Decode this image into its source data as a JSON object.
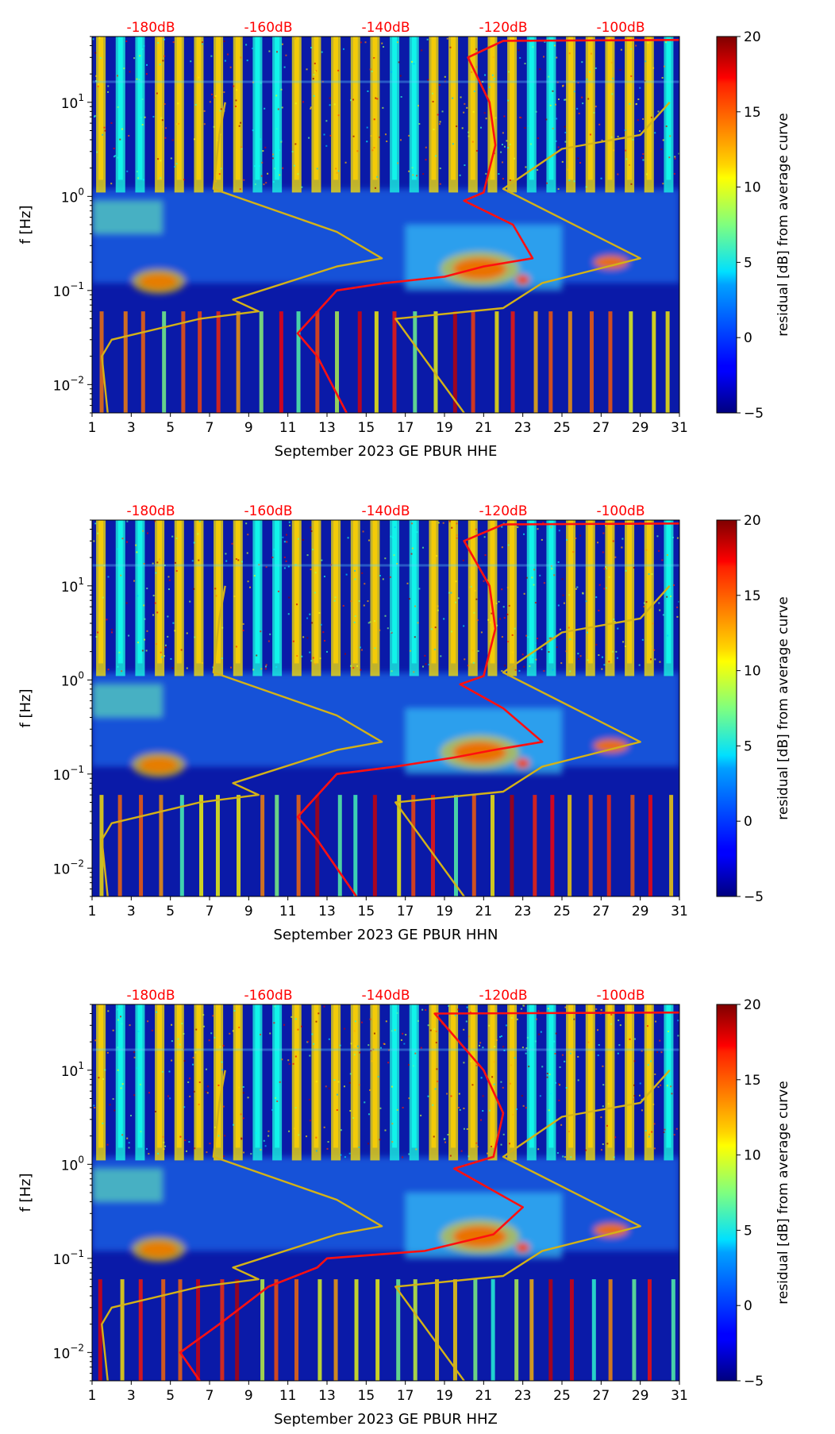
{
  "figure": {
    "background": "#ffffff"
  },
  "colors": {
    "text_red": "#ff0000",
    "nlnm_curve": "#d4b217",
    "median_curve": "#ff1010",
    "axis": "#000000"
  },
  "colorbar": {
    "label": "residual [dB] from average curve",
    "range": [
      -5,
      20
    ],
    "ticks": [
      "20",
      "15",
      "10",
      "5",
      "0",
      "−5"
    ],
    "tick_values": [
      20,
      15,
      10,
      5,
      0,
      -5
    ],
    "colormap": "jet"
  },
  "chart_data": [
    {
      "type": "heatmap",
      "title": "",
      "xlabel": "September 2023 GE PBUR  HHE",
      "ylabel": "f [Hz]",
      "x_ticks": [
        "1",
        "3",
        "5",
        "7",
        "9",
        "11",
        "13",
        "15",
        "17",
        "19",
        "21",
        "23",
        "25",
        "27",
        "29",
        "31"
      ],
      "x_range": [
        1,
        31
      ],
      "y_scale": "log",
      "y_range": [
        0.005,
        50
      ],
      "y_ticks": [
        {
          "value": 10,
          "base": "10",
          "exp": "1"
        },
        {
          "value": 1,
          "base": "10",
          "exp": "0"
        },
        {
          "value": 0.1,
          "base": "10",
          "exp": "−1"
        },
        {
          "value": 0.01,
          "base": "10",
          "exp": "−2"
        }
      ],
      "top_axis": {
        "labels": [
          "-180dB",
          "-160dB",
          "-140dB",
          "-120dB",
          "-100dB"
        ],
        "label_x": [
          4,
          10,
          16,
          22,
          28
        ]
      },
      "lines": [
        {
          "name": "noise-model",
          "points": [
            [
              1.8,
              0.005
            ],
            [
              1.5,
              0.02
            ],
            [
              2.0,
              0.03
            ],
            [
              6.5,
              0.05
            ],
            [
              9.5,
              0.06
            ],
            [
              8.2,
              0.08
            ],
            [
              13.5,
              0.18
            ],
            [
              15.8,
              0.22
            ],
            [
              13.5,
              0.42
            ],
            [
              7.2,
              1.2
            ],
            [
              7.5,
              4.5
            ],
            [
              7.8,
              10
            ],
            [
              20.0,
              0.005
            ],
            [
              16.5,
              0.05
            ],
            [
              22.0,
              0.065
            ],
            [
              24.0,
              0.12
            ],
            [
              29.0,
              0.22
            ],
            [
              22.0,
              1.2
            ],
            [
              25.0,
              3.2
            ],
            [
              29.0,
              4.5
            ],
            [
              30.5,
              10
            ]
          ]
        },
        {
          "name": "median-psd",
          "points": [
            [
              14.0,
              0.005
            ],
            [
              12.5,
              0.02
            ],
            [
              11.5,
              0.035
            ],
            [
              13.5,
              0.1
            ],
            [
              16.0,
              0.12
            ],
            [
              19.0,
              0.14
            ],
            [
              21.0,
              0.18
            ],
            [
              23.5,
              0.22
            ],
            [
              22.5,
              0.5
            ],
            [
              20.0,
              0.9
            ],
            [
              21.0,
              1.1
            ],
            [
              21.6,
              3.5
            ],
            [
              21.3,
              10
            ],
            [
              20.2,
              30
            ],
            [
              22.0,
              45
            ],
            [
              31,
              46
            ]
          ]
        }
      ]
    },
    {
      "type": "heatmap",
      "title": "",
      "xlabel": "September 2023 GE PBUR  HHN",
      "ylabel": "f [Hz]",
      "x_ticks": [
        "1",
        "3",
        "5",
        "7",
        "9",
        "11",
        "13",
        "15",
        "17",
        "19",
        "21",
        "23",
        "25",
        "27",
        "29",
        "31"
      ],
      "x_range": [
        1,
        31
      ],
      "y_scale": "log",
      "y_range": [
        0.005,
        50
      ],
      "y_ticks": [
        {
          "value": 10,
          "base": "10",
          "exp": "1"
        },
        {
          "value": 1,
          "base": "10",
          "exp": "0"
        },
        {
          "value": 0.1,
          "base": "10",
          "exp": "−1"
        },
        {
          "value": 0.01,
          "base": "10",
          "exp": "−2"
        }
      ],
      "top_axis": {
        "labels": [
          "-180dB",
          "-160dB",
          "-140dB",
          "-120dB",
          "-100dB"
        ],
        "label_x": [
          4,
          10,
          16,
          22,
          28
        ]
      },
      "lines": [
        {
          "name": "noise-model",
          "points": [
            [
              1.8,
              0.005
            ],
            [
              1.5,
              0.02
            ],
            [
              2.0,
              0.03
            ],
            [
              6.5,
              0.05
            ],
            [
              9.5,
              0.06
            ],
            [
              8.2,
              0.08
            ],
            [
              13.5,
              0.18
            ],
            [
              15.8,
              0.22
            ],
            [
              13.5,
              0.42
            ],
            [
              7.2,
              1.2
            ],
            [
              7.5,
              4.5
            ],
            [
              7.8,
              10
            ],
            [
              20.0,
              0.005
            ],
            [
              16.5,
              0.05
            ],
            [
              22.0,
              0.065
            ],
            [
              24.0,
              0.12
            ],
            [
              29.0,
              0.22
            ],
            [
              22.0,
              1.2
            ],
            [
              25.0,
              3.2
            ],
            [
              29.0,
              4.5
            ],
            [
              30.5,
              10
            ]
          ]
        },
        {
          "name": "median-psd",
          "points": [
            [
              14.5,
              0.005
            ],
            [
              12.5,
              0.02
            ],
            [
              11.5,
              0.035
            ],
            [
              13.5,
              0.1
            ],
            [
              16.5,
              0.12
            ],
            [
              19.5,
              0.15
            ],
            [
              21.5,
              0.18
            ],
            [
              24.0,
              0.22
            ],
            [
              22.0,
              0.5
            ],
            [
              19.8,
              0.9
            ],
            [
              21.0,
              1.1
            ],
            [
              21.6,
              3.5
            ],
            [
              21.3,
              10
            ],
            [
              20.0,
              30
            ],
            [
              22.0,
              45
            ],
            [
              31,
              46
            ]
          ]
        }
      ]
    },
    {
      "type": "heatmap",
      "title": "",
      "xlabel": "September 2023 GE PBUR  HHZ",
      "ylabel": "f [Hz]",
      "x_ticks": [
        "1",
        "3",
        "5",
        "7",
        "9",
        "11",
        "13",
        "15",
        "17",
        "19",
        "21",
        "23",
        "25",
        "27",
        "29",
        "31"
      ],
      "x_range": [
        1,
        31
      ],
      "y_scale": "log",
      "y_range": [
        0.005,
        50
      ],
      "y_ticks": [
        {
          "value": 10,
          "base": "10",
          "exp": "1"
        },
        {
          "value": 1,
          "base": "10",
          "exp": "0"
        },
        {
          "value": 0.1,
          "base": "10",
          "exp": "−1"
        },
        {
          "value": 0.01,
          "base": "10",
          "exp": "−2"
        }
      ],
      "top_axis": {
        "labels": [
          "-180dB",
          "-160dB",
          "-140dB",
          "-120dB",
          "-100dB"
        ],
        "label_x": [
          4,
          10,
          16,
          22,
          28
        ]
      },
      "lines": [
        {
          "name": "noise-model",
          "points": [
            [
              1.8,
              0.005
            ],
            [
              1.5,
              0.02
            ],
            [
              2.0,
              0.03
            ],
            [
              6.5,
              0.05
            ],
            [
              9.5,
              0.06
            ],
            [
              8.2,
              0.08
            ],
            [
              13.5,
              0.18
            ],
            [
              15.8,
              0.22
            ],
            [
              13.5,
              0.42
            ],
            [
              7.2,
              1.2
            ],
            [
              7.5,
              4.5
            ],
            [
              7.8,
              10
            ],
            [
              20.0,
              0.005
            ],
            [
              16.5,
              0.05
            ],
            [
              22.0,
              0.065
            ],
            [
              24.0,
              0.12
            ],
            [
              29.0,
              0.22
            ],
            [
              22.0,
              1.2
            ],
            [
              25.0,
              3.2
            ],
            [
              29.0,
              4.5
            ],
            [
              30.5,
              10
            ]
          ]
        },
        {
          "name": "median-psd",
          "points": [
            [
              6.5,
              0.005
            ],
            [
              5.5,
              0.01
            ],
            [
              7.5,
              0.02
            ],
            [
              10.0,
              0.05
            ],
            [
              12.5,
              0.08
            ],
            [
              13.0,
              0.1
            ],
            [
              18.0,
              0.12
            ],
            [
              21.5,
              0.18
            ],
            [
              23.0,
              0.35
            ],
            [
              21.0,
              0.6
            ],
            [
              19.5,
              0.9
            ],
            [
              21.5,
              1.2
            ],
            [
              22.0,
              3.5
            ],
            [
              21.0,
              10
            ],
            [
              18.5,
              40
            ],
            [
              31,
              41
            ]
          ]
        }
      ]
    }
  ]
}
